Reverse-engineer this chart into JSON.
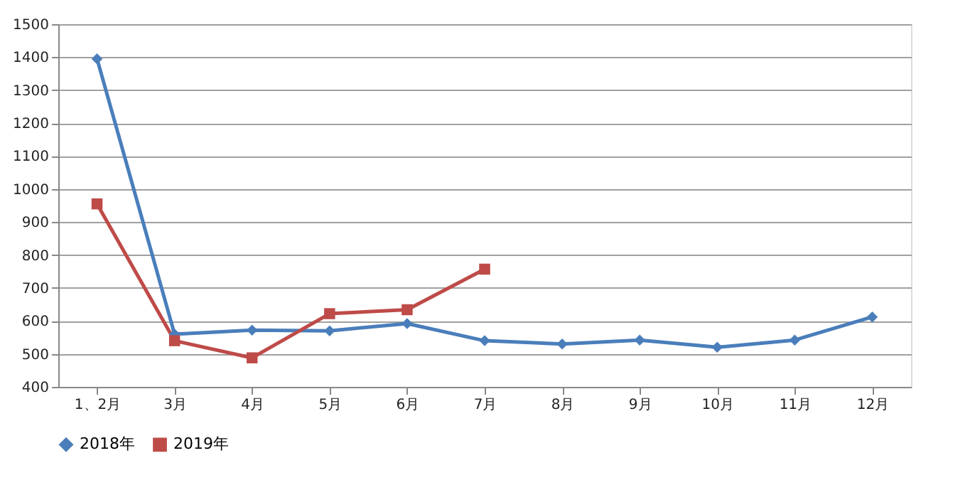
{
  "chart_data": {
    "type": "line",
    "categories": [
      "1、2月",
      "3月",
      "4月",
      "5月",
      "6月",
      "7月",
      "8月",
      "9月",
      "10月",
      "11月",
      "12月"
    ],
    "series": [
      {
        "name": "2018年",
        "color": "#4a7ebb",
        "marker": "diamond",
        "values": [
          1395,
          560,
          572,
          570,
          592,
          540,
          530,
          542,
          520,
          542,
          612
        ]
      },
      {
        "name": "2019年",
        "color": "#be4b48",
        "marker": "square",
        "values": [
          955,
          540,
          488,
          622,
          634,
          757,
          null,
          null,
          null,
          null,
          null
        ]
      }
    ],
    "ylim": [
      400,
      1500
    ],
    "yticks": [
      400,
      500,
      600,
      700,
      800,
      900,
      1000,
      1100,
      1200,
      1300,
      1400,
      1500
    ],
    "grid": "y",
    "legend": "bottom",
    "line_style": "solid"
  }
}
